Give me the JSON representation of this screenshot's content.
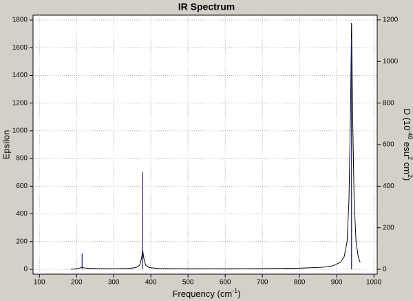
{
  "chart_data": {
    "type": "line",
    "title": "IR Spectrum",
    "x_label": [
      "Frequency (cm",
      "-1",
      ")"
    ],
    "y_label": "Epsilon",
    "y2_label": [
      "D (10",
      "-40",
      " esu",
      "2",
      " cm",
      "2",
      ")"
    ],
    "xlim": [
      83,
      1009
    ],
    "xticks": [
      100,
      200,
      300,
      400,
      500,
      600,
      700,
      800,
      900,
      1000
    ],
    "ylim": [
      -35,
      1835
    ],
    "yticks": [
      0,
      200,
      400,
      600,
      800,
      1000,
      1200,
      1400,
      1600,
      1800
    ],
    "y2lim": [
      -23,
      1223
    ],
    "y2ticks": [
      0,
      200,
      400,
      600,
      800,
      1000,
      1200
    ],
    "grid": true,
    "series": [
      {
        "color": "#000000",
        "x": [
          185,
          195,
          205,
          210,
          215,
          220,
          230,
          260,
          300,
          340,
          360,
          370,
          375,
          378,
          381,
          386,
          395,
          420,
          480,
          600,
          700,
          800,
          860,
          890,
          910,
          920,
          928,
          933,
          937,
          940,
          943,
          947,
          952,
          958,
          963
        ],
        "values": [
          0,
          3,
          7,
          10,
          17,
          10,
          7,
          5,
          4,
          6,
          12,
          30,
          80,
          140,
          80,
          30,
          12,
          6,
          4,
          4,
          5,
          8,
          14,
          25,
          50,
          90,
          200,
          500,
          1100,
          1780,
          1100,
          500,
          200,
          90,
          50
        ]
      },
      {
        "color": "#1a1a8c",
        "axis": "y2",
        "x": [
          215,
          378,
          940
        ],
        "values": [
          76,
          467,
          1107
        ]
      }
    ]
  }
}
